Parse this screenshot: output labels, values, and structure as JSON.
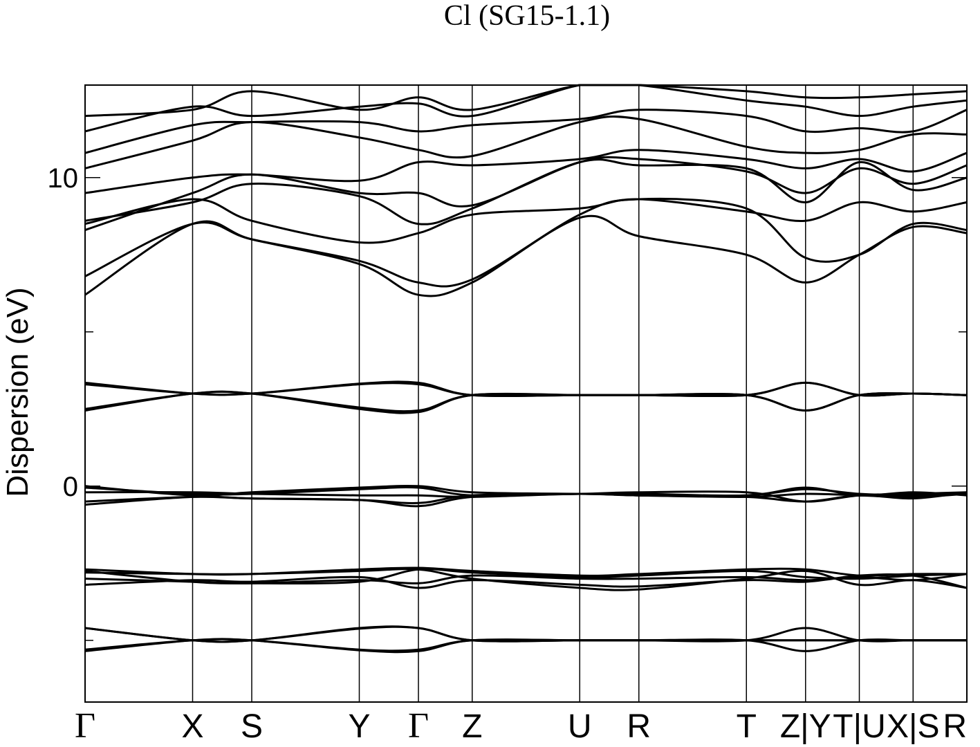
{
  "chart_data": {
    "type": "line",
    "title": "Cl (SG15-1.1)",
    "ylabel": "Dispersion (eV)",
    "xlabel": "",
    "ylim": [
      -7,
      13
    ],
    "y_major_ticks": [
      0,
      10
    ],
    "y_minor_ticks": [
      -5,
      5
    ],
    "grid": false,
    "kpath": [
      {
        "label": "Γ",
        "x": 0.0
      },
      {
        "label": "X",
        "x": 1.0
      },
      {
        "label": "S",
        "x": 1.55
      },
      {
        "label": "Y",
        "x": 2.55
      },
      {
        "label": "Γ",
        "x": 3.1
      },
      {
        "label": "Z",
        "x": 3.6
      },
      {
        "label": "U",
        "x": 4.6
      },
      {
        "label": "R",
        "x": 5.15
      },
      {
        "label": "T",
        "x": 6.15
      },
      {
        "label": "Z|Y",
        "x": 6.7
      },
      {
        "label": "T|U",
        "x": 7.2
      },
      {
        "label": "X|S",
        "x": 7.7
      },
      {
        "label": "R",
        "x": 8.2
      }
    ],
    "x": [
      0.0,
      1.0,
      1.55,
      2.55,
      3.1,
      3.6,
      4.6,
      5.15,
      6.15,
      6.7,
      7.2,
      7.7,
      8.2
    ],
    "series": [
      {
        "values": [
          -5.3,
          -5.0,
          -5.0,
          -5.3,
          -5.3,
          -5.0,
          -5.0,
          -5.0,
          -5.0,
          -5.0,
          -5.0,
          -5.0,
          -5.0
        ]
      },
      {
        "values": [
          -5.35,
          -5.0,
          -5.0,
          -5.32,
          -5.35,
          -5.0,
          -5.0,
          -5.0,
          -5.0,
          -5.0,
          -5.0,
          -5.0,
          -5.0
        ]
      },
      {
        "values": [
          -4.6,
          -5.0,
          -5.0,
          -4.6,
          -4.6,
          -5.0,
          -5.0,
          -5.0,
          -5.0,
          -4.6,
          -5.0,
          -5.0,
          -5.0
        ]
      },
      {
        "values": [
          -4.6,
          -5.0,
          -5.0,
          -4.62,
          -4.6,
          -5.0,
          -5.0,
          -5.0,
          -5.0,
          -5.35,
          -5.0,
          -5.0,
          -5.0
        ]
      },
      {
        "values": [
          -2.7,
          -2.85,
          -2.85,
          -2.7,
          -2.65,
          -2.75,
          -2.9,
          -2.85,
          -2.7,
          -2.7,
          -2.9,
          -2.85,
          -2.85
        ]
      },
      {
        "values": [
          -2.75,
          -3.1,
          -3.15,
          -3.1,
          -2.7,
          -2.8,
          -2.95,
          -2.9,
          -2.75,
          -2.95,
          -3.0,
          -2.9,
          -2.85
        ]
      },
      {
        "values": [
          -2.8,
          -2.85,
          -2.85,
          -2.75,
          -2.7,
          -3.0,
          -3.3,
          -3.35,
          -3.0,
          -2.75,
          -3.2,
          -3.05,
          -3.3
        ]
      },
      {
        "values": [
          -3.2,
          -3.05,
          -3.1,
          -2.95,
          -3.3,
          -3.05,
          -3.2,
          -3.25,
          -3.05,
          -3.1,
          -2.9,
          -2.9,
          -3.3
        ]
      },
      {
        "values": [
          -3.0,
          -3.1,
          -3.15,
          -3.05,
          -3.15,
          -2.9,
          -3.0,
          -3.0,
          -2.95,
          -3.05,
          -2.95,
          -3.05,
          -2.85
        ]
      },
      {
        "values": [
          0.0,
          -0.3,
          -0.2,
          -0.05,
          0.0,
          -0.2,
          -0.25,
          -0.25,
          -0.3,
          -0.05,
          -0.3,
          -0.2,
          -0.3
        ]
      },
      {
        "values": [
          -0.05,
          -0.25,
          -0.25,
          -0.1,
          -0.05,
          -0.3,
          -0.25,
          -0.3,
          -0.3,
          -0.1,
          -0.25,
          -0.3,
          -0.25
        ]
      },
      {
        "values": [
          -0.5,
          -0.35,
          -0.4,
          -0.45,
          -0.55,
          -0.3,
          -0.25,
          -0.2,
          -0.2,
          -0.5,
          -0.3,
          -0.25,
          -0.2
        ]
      },
      {
        "values": [
          -0.6,
          -0.35,
          -0.4,
          -0.45,
          -0.65,
          -0.35,
          -0.25,
          -0.3,
          -0.35,
          -0.5,
          -0.3,
          -0.4,
          -0.2
        ]
      },
      {
        "values": [
          -0.2,
          -0.2,
          -0.25,
          -0.3,
          -0.3,
          -0.35,
          -0.25,
          -0.3,
          -0.35,
          -0.25,
          -0.3,
          -0.35,
          -0.25
        ]
      },
      {
        "values": [
          3.3,
          3.0,
          3.0,
          3.3,
          3.3,
          2.95,
          2.95,
          2.95,
          2.95,
          3.35,
          2.95,
          3.0,
          2.95
        ]
      },
      {
        "values": [
          3.35,
          3.0,
          3.0,
          3.32,
          3.35,
          2.95,
          2.95,
          2.95,
          2.95,
          3.35,
          2.95,
          3.0,
          2.95
        ]
      },
      {
        "values": [
          2.5,
          3.0,
          3.0,
          2.55,
          2.45,
          2.95,
          2.95,
          2.95,
          2.95,
          2.45,
          2.95,
          3.0,
          2.95
        ]
      },
      {
        "values": [
          2.45,
          3.0,
          3.0,
          2.5,
          2.4,
          2.95,
          2.95,
          2.95,
          2.95,
          2.45,
          2.95,
          3.0,
          2.95
        ]
      },
      {
        "values": [
          6.2,
          8.5,
          8.0,
          7.2,
          6.2,
          6.6,
          8.7,
          8.1,
          7.5,
          6.6,
          7.5,
          8.4,
          8.2
        ]
      },
      {
        "values": [
          6.8,
          8.5,
          8.0,
          7.3,
          6.6,
          6.7,
          8.8,
          9.3,
          9.0,
          7.4,
          7.5,
          8.5,
          8.3
        ]
      },
      {
        "values": [
          8.5,
          9.3,
          8.6,
          7.9,
          8.2,
          8.8,
          9.0,
          9.3,
          8.9,
          8.6,
          9.2,
          8.9,
          9.2
        ]
      },
      {
        "values": [
          8.6,
          9.2,
          9.8,
          9.4,
          8.5,
          9.0,
          10.5,
          10.4,
          10.3,
          9.2,
          10.5,
          9.6,
          10.0
        ]
      },
      {
        "values": [
          8.3,
          9.5,
          10.1,
          9.5,
          9.5,
          9.1,
          10.5,
          10.6,
          10.2,
          9.5,
          10.3,
          9.8,
          10.4
        ]
      },
      {
        "values": [
          9.5,
          10.0,
          10.1,
          9.9,
          10.5,
          10.4,
          10.6,
          10.9,
          10.6,
          10.3,
          10.6,
          10.2,
          10.8
        ]
      },
      {
        "values": [
          10.3,
          11.2,
          11.8,
          11.3,
          10.9,
          10.7,
          11.8,
          11.9,
          11.0,
          10.8,
          10.9,
          11.4,
          11.4
        ]
      },
      {
        "values": [
          10.8,
          11.7,
          11.8,
          11.8,
          11.5,
          11.7,
          11.9,
          12.2,
          12.0,
          11.5,
          11.6,
          11.5,
          12.2
        ]
      },
      {
        "values": [
          11.5,
          12.3,
          12.0,
          12.3,
          12.4,
          12.0,
          13.0,
          13.0,
          12.5,
          12.3,
          12.0,
          12.3,
          12.5
        ]
      },
      {
        "values": [
          12.0,
          12.2,
          12.8,
          12.2,
          12.6,
          12.2,
          13.0,
          13.0,
          12.8,
          12.6,
          12.6,
          12.7,
          12.8
        ]
      }
    ]
  }
}
